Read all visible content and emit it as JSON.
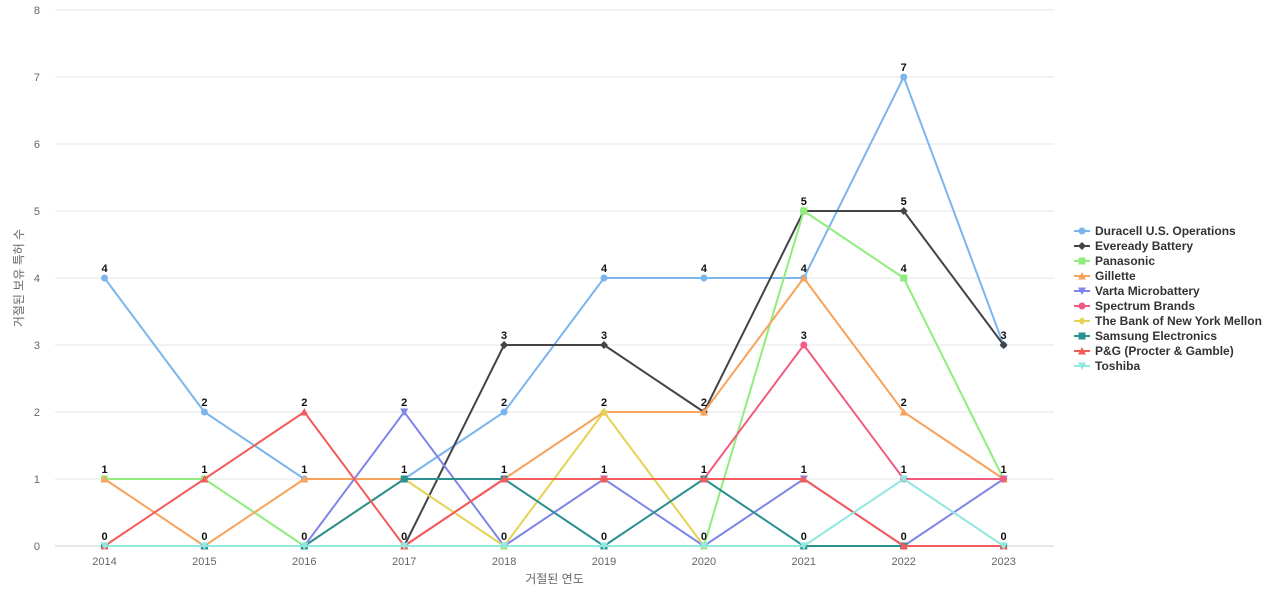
{
  "chart_data": {
    "type": "line",
    "title": "",
    "xlabel": "거절된 연도",
    "ylabel": "거절된 보유 특허 수",
    "ylim": [
      0,
      8
    ],
    "yticks": [
      0,
      1,
      2,
      3,
      4,
      5,
      6,
      7,
      8
    ],
    "grid": true,
    "legend_position": "right",
    "categories": [
      "2014",
      "2015",
      "2016",
      "2017",
      "2018",
      "2019",
      "2020",
      "2021",
      "2022",
      "2023"
    ],
    "series": [
      {
        "name": "Duracell U.S. Operations",
        "color": "#7cb5ec",
        "marker": "circle",
        "values": [
          4,
          2,
          1,
          1,
          2,
          4,
          4,
          4,
          7,
          3
        ]
      },
      {
        "name": "Eveready Battery",
        "color": "#434348",
        "marker": "diamond",
        "values": [
          0,
          0,
          0,
          0,
          3,
          3,
          2,
          5,
          5,
          3
        ]
      },
      {
        "name": "Panasonic",
        "color": "#90ed7d",
        "marker": "square",
        "values": [
          1,
          1,
          0,
          0,
          0,
          0,
          0,
          5,
          4,
          1
        ]
      },
      {
        "name": "Gillette",
        "color": "#f7a35c",
        "marker": "triangle",
        "values": [
          1,
          0,
          1,
          1,
          1,
          2,
          2,
          4,
          2,
          1
        ]
      },
      {
        "name": "Varta Microbattery",
        "color": "#8085e9",
        "marker": "triangle-down",
        "values": [
          0,
          0,
          0,
          2,
          0,
          1,
          0,
          1,
          0,
          1
        ]
      },
      {
        "name": "Spectrum Brands",
        "color": "#f15c80",
        "marker": "circle",
        "values": [
          0,
          0,
          0,
          0,
          1,
          1,
          1,
          3,
          1,
          1
        ]
      },
      {
        "name": "The Bank of New York Mellon",
        "color": "#e4d354",
        "marker": "diamond",
        "values": [
          0,
          0,
          0,
          1,
          0,
          2,
          0,
          0,
          0,
          0
        ]
      },
      {
        "name": "Samsung Electronics",
        "color": "#2b908f",
        "marker": "square",
        "values": [
          0,
          0,
          0,
          1,
          1,
          0,
          1,
          0,
          0,
          0
        ]
      },
      {
        "name": "P&G (Procter & Gamble)",
        "color": "#f45b5b",
        "marker": "triangle",
        "values": [
          0,
          1,
          2,
          0,
          1,
          1,
          1,
          1,
          0,
          0
        ]
      },
      {
        "name": "Toshiba",
        "color": "#91e8e1",
        "marker": "triangle-down",
        "values": [
          0,
          0,
          0,
          0,
          0,
          0,
          0,
          0,
          1,
          0
        ]
      }
    ],
    "data_labels": [
      {
        "x": "2014",
        "value": "4",
        "series": "Duracell U.S. Operations"
      },
      {
        "x": "2014",
        "value": "1",
        "series": "Panasonic"
      },
      {
        "x": "2014",
        "value": "0",
        "series": "Eveready Battery"
      },
      {
        "x": "2015",
        "value": "2",
        "series": "Duracell U.S. Operations"
      },
      {
        "x": "2015",
        "value": "1",
        "series": "P&G (Procter & Gamble)"
      },
      {
        "x": "2015",
        "value": "0",
        "series": "Gillette"
      },
      {
        "x": "2016",
        "value": "2",
        "series": "P&G (Procter & Gamble)"
      },
      {
        "x": "2016",
        "value": "1",
        "series": "Duracell U.S. Operations"
      },
      {
        "x": "2016",
        "value": "0",
        "series": "Panasonic"
      },
      {
        "x": "2017",
        "value": "2",
        "series": "Varta Microbattery"
      },
      {
        "x": "2017",
        "value": "1",
        "series": "Duracell U.S. Operations"
      },
      {
        "x": "2017",
        "value": "0",
        "series": "Eveready Battery"
      },
      {
        "x": "2018",
        "value": "3",
        "series": "Eveready Battery"
      },
      {
        "x": "2018",
        "value": "2",
        "series": "Duracell U.S. Operations"
      },
      {
        "x": "2018",
        "value": "1",
        "series": "Samsung Electronics"
      },
      {
        "x": "2018",
        "value": "0",
        "series": "Panasonic"
      },
      {
        "x": "2019",
        "value": "4",
        "series": "Duracell U.S. Operations"
      },
      {
        "x": "2019",
        "value": "3",
        "series": "Eveready Battery"
      },
      {
        "x": "2019",
        "value": "2",
        "series": "Gillette"
      },
      {
        "x": "2019",
        "value": "1",
        "series": "Spectrum Brands"
      },
      {
        "x": "2019",
        "value": "0",
        "series": "Panasonic"
      },
      {
        "x": "2020",
        "value": "4",
        "series": "Duracell U.S. Operations"
      },
      {
        "x": "2020",
        "value": "2",
        "series": "Eveready Battery"
      },
      {
        "x": "2020",
        "value": "1",
        "series": "Samsung Electronics"
      },
      {
        "x": "2020",
        "value": "0",
        "series": "Panasonic"
      },
      {
        "x": "2021",
        "value": "5",
        "series": "Eveready Battery"
      },
      {
        "x": "2021",
        "value": "4",
        "series": "Duracell U.S. Operations"
      },
      {
        "x": "2021",
        "value": "3",
        "series": "Spectrum Brands"
      },
      {
        "x": "2021",
        "value": "1",
        "series": "P&G (Procter & Gamble)"
      },
      {
        "x": "2021",
        "value": "0",
        "series": "Samsung Electronics"
      },
      {
        "x": "2022",
        "value": "7",
        "series": "Duracell U.S. Operations"
      },
      {
        "x": "2022",
        "value": "5",
        "series": "Eveready Battery"
      },
      {
        "x": "2022",
        "value": "4",
        "series": "Panasonic"
      },
      {
        "x": "2022",
        "value": "2",
        "series": "Gillette"
      },
      {
        "x": "2022",
        "value": "1",
        "series": "Toshiba"
      },
      {
        "x": "2022",
        "value": "0",
        "series": "Varta Microbattery"
      },
      {
        "x": "2023",
        "value": "3",
        "series": "Eveready Battery"
      },
      {
        "x": "2023",
        "value": "1",
        "series": "Panasonic"
      },
      {
        "x": "2023",
        "value": "0",
        "series": "Toshiba"
      }
    ]
  }
}
